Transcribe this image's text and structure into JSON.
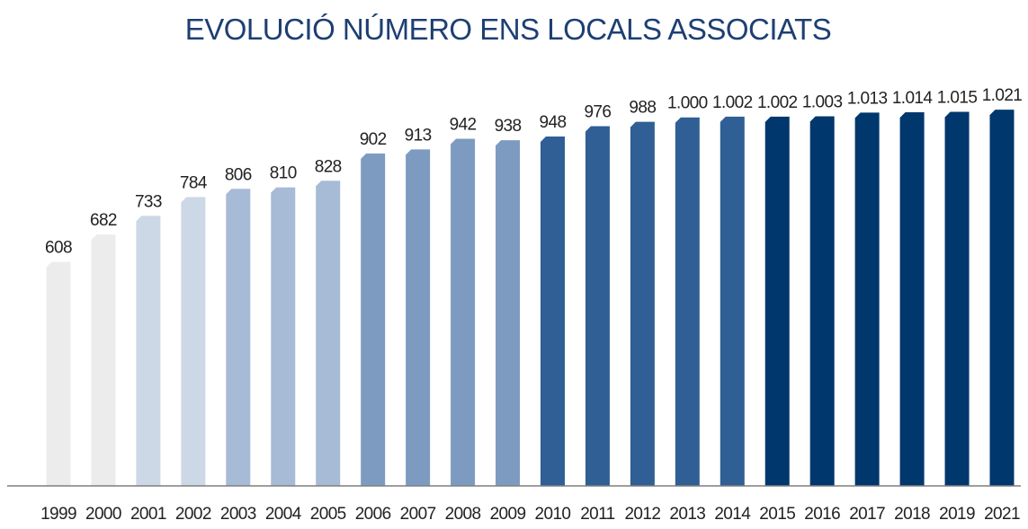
{
  "chart_data": {
    "type": "bar",
    "title": "EVOLUCIÓ NÚMERO ENS LOCALS ASSOCIATS",
    "categories": [
      "1999",
      "2000",
      "2001",
      "2002",
      "2003",
      "2004",
      "2005",
      "2006",
      "2007",
      "2008",
      "2009",
      "2010",
      "2011",
      "2012",
      "2013",
      "2014",
      "2015",
      "2016",
      "2017",
      "2018",
      "2019",
      "2021"
    ],
    "values": [
      608,
      682,
      733,
      784,
      806,
      810,
      828,
      902,
      913,
      942,
      938,
      948,
      976,
      988,
      1000,
      1002,
      1002,
      1003,
      1013,
      1014,
      1015,
      1021
    ],
    "value_labels": [
      "608",
      "682",
      "733",
      "784",
      "806",
      "810",
      "828",
      "902",
      "913",
      "942",
      "938",
      "948",
      "976",
      "988",
      "1.000",
      "1.002",
      "1.002",
      "1.003",
      "1.013",
      "1.014",
      "1.015",
      "1.021"
    ],
    "bar_colors": [
      "#ececec",
      "#ececec",
      "#cdd8e6",
      "#cdd8e6",
      "#a7bad6",
      "#a7bad6",
      "#a7bad6",
      "#7d9bc1",
      "#7d9bc1",
      "#7d9bc1",
      "#7d9bc1",
      "#2f5f95",
      "#2f5f95",
      "#2f5f95",
      "#2f5f95",
      "#2f5f95",
      "#00376d",
      "#00376d",
      "#00376d",
      "#00376d",
      "#00376d",
      "#00376d"
    ],
    "title_color": "#1d3f73",
    "axis_color": "#7f7f7f",
    "grid": false,
    "legend": "none"
  }
}
